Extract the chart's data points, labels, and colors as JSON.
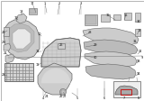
{
  "bg_color": "#f2f2f2",
  "white": "#ffffff",
  "lc": "#444444",
  "dc": "#666666",
  "mc": "#999999",
  "lmc": "#bbbbbb",
  "vlc": "#cccccc",
  "border": "#aaaaaa",
  "red": "#cc0000",
  "labels": [
    [
      "17",
      36,
      108
    ],
    [
      "18",
      24,
      99
    ],
    [
      "19",
      18,
      92
    ],
    [
      "20",
      4,
      76
    ],
    [
      "21",
      6,
      53
    ],
    [
      "22",
      4,
      65
    ],
    [
      "23",
      4,
      29
    ],
    [
      "24",
      52,
      5
    ],
    [
      "25",
      68,
      5
    ],
    [
      "26",
      68,
      62
    ],
    [
      "27",
      72,
      5
    ],
    [
      "28",
      100,
      76
    ],
    [
      "29",
      106,
      62
    ],
    [
      "30",
      106,
      48
    ],
    [
      "31",
      150,
      66
    ],
    [
      "32",
      156,
      55
    ],
    [
      "33",
      154,
      44
    ],
    [
      "34",
      154,
      30
    ],
    [
      "1",
      50,
      108
    ],
    [
      "2",
      66,
      108
    ],
    [
      "3",
      90,
      108
    ],
    [
      "4",
      48,
      3
    ],
    [
      "5",
      86,
      3
    ],
    [
      "6",
      116,
      3
    ],
    [
      "7",
      138,
      3
    ],
    [
      "8",
      154,
      3
    ],
    [
      "9",
      158,
      48
    ],
    [
      "10",
      44,
      74
    ],
    [
      "11",
      42,
      55
    ],
    [
      "12",
      42,
      40
    ],
    [
      "13",
      155,
      78
    ],
    [
      "14",
      154,
      88
    ],
    [
      "15",
      140,
      95
    ],
    [
      "16",
      120,
      95
    ]
  ]
}
